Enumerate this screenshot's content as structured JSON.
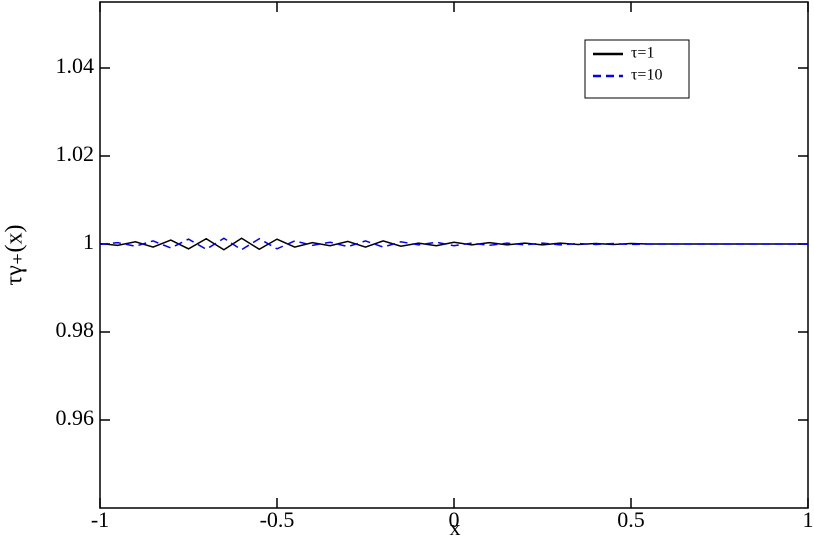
{
  "chart_data": {
    "type": "line",
    "xlabel": "x",
    "ylabel": "τγ₊(x)",
    "x": [
      -1,
      -0.95,
      -0.9,
      -0.85,
      -0.8,
      -0.75,
      -0.7,
      -0.65,
      -0.6,
      -0.55,
      -0.5,
      -0.45,
      -0.4,
      -0.35,
      -0.3,
      -0.25,
      -0.2,
      -0.15,
      -0.1,
      -0.05,
      0,
      0.05,
      0.1,
      0.15,
      0.2,
      0.25,
      0.3,
      0.35,
      0.4,
      0.45,
      0.5,
      0.55,
      0.6,
      0.65,
      0.7,
      0.75,
      0.8,
      0.85,
      0.9,
      0.95,
      1
    ],
    "series": [
      {
        "name": "τ=1",
        "color": "#000000",
        "style": "solid",
        "values": [
          1.0001,
          0.9997,
          1.0005,
          0.9993,
          1.0009,
          0.9989,
          1.0012,
          0.9987,
          1.0013,
          0.9988,
          1.0011,
          0.9993,
          1.0003,
          0.9996,
          1.0006,
          0.9993,
          1.0007,
          0.9995,
          1.0002,
          0.9996,
          1.0004,
          0.9998,
          1.0003,
          0.9998,
          1.0002,
          0.9998,
          1.0002,
          0.9999,
          1.0001,
          0.9999,
          1.0001,
          1,
          1,
          1,
          1,
          1,
          1,
          1,
          1,
          1,
          1
        ]
      },
      {
        "name": "τ=10",
        "color": "#0000ff",
        "style": "dashed",
        "values": [
          0.9999,
          1.0003,
          0.9995,
          1.0007,
          0.9991,
          1.0011,
          0.9988,
          1.0013,
          0.9987,
          1.0012,
          0.9989,
          1.0007,
          0.9997,
          1.0004,
          0.9994,
          1.0007,
          0.9993,
          1.0005,
          0.9998,
          1.0004,
          0.9996,
          1.0002,
          0.9997,
          1.0002,
          0.9998,
          1.0002,
          0.9998,
          1.0001,
          0.9999,
          1.0001,
          0.9999,
          1,
          1,
          1,
          1,
          1,
          1,
          1,
          1,
          1,
          1
        ]
      }
    ],
    "xlim": [
      -1,
      1
    ],
    "xticks": [
      -1,
      -0.5,
      0,
      0.5,
      1
    ],
    "ylim": [
      0.94,
      1.055
    ],
    "yticks": [
      0.96,
      0.98,
      1,
      1.02,
      1.04
    ],
    "legend": "top-right",
    "grid": false
  }
}
